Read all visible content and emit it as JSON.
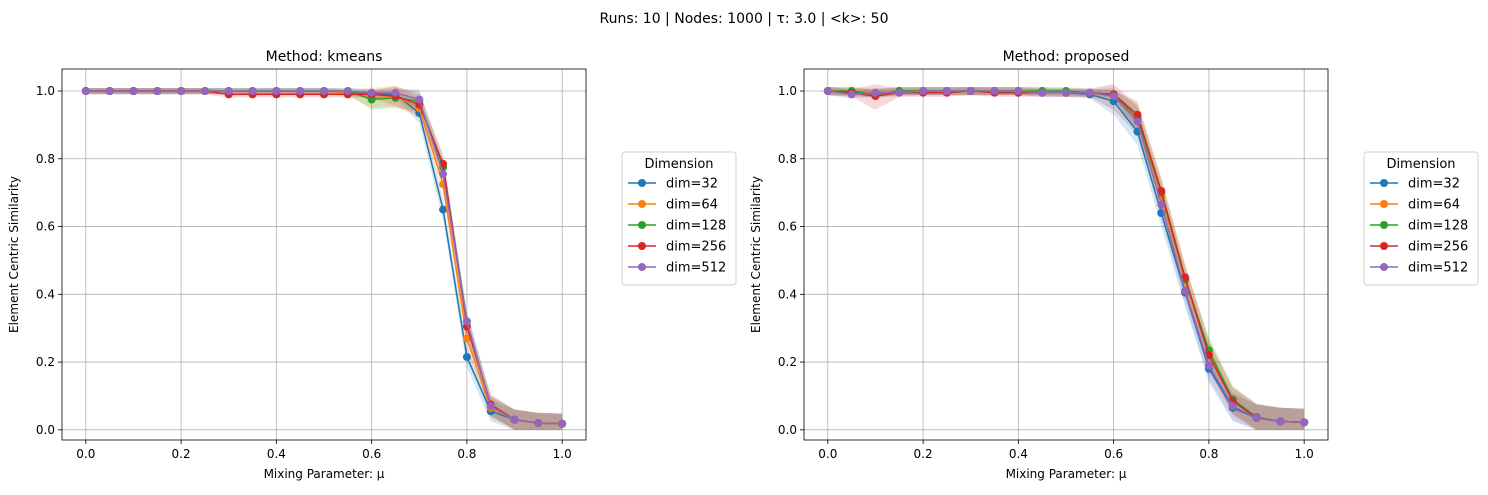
{
  "figure": {
    "suptitle": "Runs: 10 | Nodes: 1000 | τ: 3.0 | <k>: 50"
  },
  "chart_data": [
    {
      "type": "line",
      "title": "Method: kmeans",
      "xlabel": "Mixing Parameter: μ",
      "ylabel": "Element Centric Similarity",
      "xlim": [
        -0.05,
        1.05
      ],
      "ylim": [
        -0.03,
        1.065
      ],
      "xticks": [
        "0.0",
        "0.2",
        "0.4",
        "0.6",
        "0.8",
        "1.0"
      ],
      "yticks": [
        "0.0",
        "0.2",
        "0.4",
        "0.6",
        "0.8",
        "1.0"
      ],
      "grid": true,
      "legend": {
        "title": "Dimension",
        "placement": "outside-right"
      },
      "x": [
        0.0,
        0.05,
        0.1,
        0.15,
        0.2,
        0.25,
        0.3,
        0.35,
        0.4,
        0.45,
        0.5,
        0.55,
        0.6,
        0.65,
        0.7,
        0.75,
        0.8,
        0.85,
        0.9,
        0.95,
        1.0
      ],
      "series": [
        {
          "name": "dim=32",
          "color": "#1f77b4",
          "band": 0.03,
          "values": [
            1.0,
            1.0,
            1.0,
            1.0,
            1.0,
            1.0,
            1.0,
            1.0,
            1.0,
            1.0,
            1.0,
            0.995,
            0.99,
            0.99,
            0.935,
            0.65,
            0.215,
            0.055,
            0.03,
            0.02,
            0.018
          ]
        },
        {
          "name": "dim=64",
          "color": "#ff7f0e",
          "band": 0.03,
          "values": [
            1.0,
            1.0,
            1.0,
            1.0,
            1.0,
            1.0,
            1.0,
            1.0,
            1.0,
            1.0,
            1.0,
            0.995,
            0.98,
            0.985,
            0.95,
            0.725,
            0.27,
            0.065,
            0.03,
            0.02,
            0.018
          ]
        },
        {
          "name": "dim=128",
          "color": "#2ca02c",
          "band": 0.03,
          "values": [
            1.0,
            1.0,
            1.0,
            1.0,
            1.0,
            1.0,
            1.0,
            1.0,
            1.0,
            1.0,
            1.0,
            1.0,
            0.975,
            0.98,
            0.97,
            0.775,
            0.32,
            0.07,
            0.03,
            0.02,
            0.018
          ]
        },
        {
          "name": "dim=256",
          "color": "#d62728",
          "band": 0.03,
          "values": [
            1.0,
            1.0,
            1.0,
            1.0,
            1.0,
            1.0,
            0.99,
            0.99,
            0.99,
            0.99,
            0.99,
            0.99,
            0.99,
            0.985,
            0.96,
            0.785,
            0.305,
            0.075,
            0.03,
            0.02,
            0.018
          ]
        },
        {
          "name": "dim=512",
          "color": "#9467bd",
          "band": 0.03,
          "values": [
            1.0,
            1.0,
            1.0,
            1.0,
            1.0,
            1.0,
            1.0,
            1.0,
            1.0,
            1.0,
            1.0,
            1.0,
            0.995,
            0.995,
            0.975,
            0.755,
            0.32,
            0.07,
            0.03,
            0.02,
            0.018
          ]
        }
      ]
    },
    {
      "type": "line",
      "title": "Method: proposed",
      "xlabel": "Mixing Parameter: μ",
      "ylabel": "Element Centric Similarity",
      "xlim": [
        -0.05,
        1.05
      ],
      "ylim": [
        -0.03,
        1.065
      ],
      "xticks": [
        "0.0",
        "0.2",
        "0.4",
        "0.6",
        "0.8",
        "1.0"
      ],
      "yticks": [
        "0.0",
        "0.2",
        "0.4",
        "0.6",
        "0.8",
        "1.0"
      ],
      "grid": true,
      "legend": {
        "title": "Dimension",
        "placement": "outside-right"
      },
      "x": [
        0.0,
        0.05,
        0.1,
        0.15,
        0.2,
        0.25,
        0.3,
        0.35,
        0.4,
        0.45,
        0.5,
        0.55,
        0.6,
        0.65,
        0.7,
        0.75,
        0.8,
        0.85,
        0.9,
        0.95,
        1.0
      ],
      "series": [
        {
          "name": "dim=32",
          "color": "#1f77b4",
          "band": 0.04,
          "values": [
            1.0,
            0.995,
            0.995,
            1.0,
            1.0,
            1.0,
            1.0,
            1.0,
            1.0,
            0.995,
            0.995,
            0.99,
            0.97,
            0.88,
            0.64,
            0.405,
            0.18,
            0.065,
            0.035,
            0.025,
            0.022
          ]
        },
        {
          "name": "dim=64",
          "color": "#ff7f0e",
          "band": 0.04,
          "values": [
            1.0,
            1.0,
            0.995,
            1.0,
            1.0,
            1.0,
            1.0,
            1.0,
            1.0,
            1.0,
            0.995,
            0.995,
            0.985,
            0.92,
            0.69,
            0.44,
            0.225,
            0.085,
            0.035,
            0.025,
            0.022
          ]
        },
        {
          "name": "dim=128",
          "color": "#2ca02c",
          "band": 0.04,
          "values": [
            1.0,
            1.0,
            0.99,
            1.0,
            1.0,
            1.0,
            1.0,
            1.0,
            1.0,
            1.0,
            1.0,
            0.995,
            0.99,
            0.92,
            0.7,
            0.445,
            0.235,
            0.09,
            0.038,
            0.025,
            0.022
          ]
        },
        {
          "name": "dim=256",
          "color": "#d62728",
          "band": 0.04,
          "values": [
            1.0,
            0.995,
            0.985,
            0.995,
            0.995,
            0.995,
            1.0,
            0.995,
            0.995,
            0.995,
            0.995,
            0.995,
            0.99,
            0.93,
            0.705,
            0.45,
            0.22,
            0.085,
            0.035,
            0.025,
            0.022
          ]
        },
        {
          "name": "dim=512",
          "color": "#9467bd",
          "band": 0.04,
          "values": [
            1.0,
            0.99,
            0.995,
            0.995,
            1.0,
            1.0,
            1.0,
            1.0,
            1.0,
            0.995,
            0.995,
            0.995,
            0.985,
            0.91,
            0.665,
            0.41,
            0.19,
            0.07,
            0.035,
            0.025,
            0.022
          ]
        }
      ]
    }
  ]
}
